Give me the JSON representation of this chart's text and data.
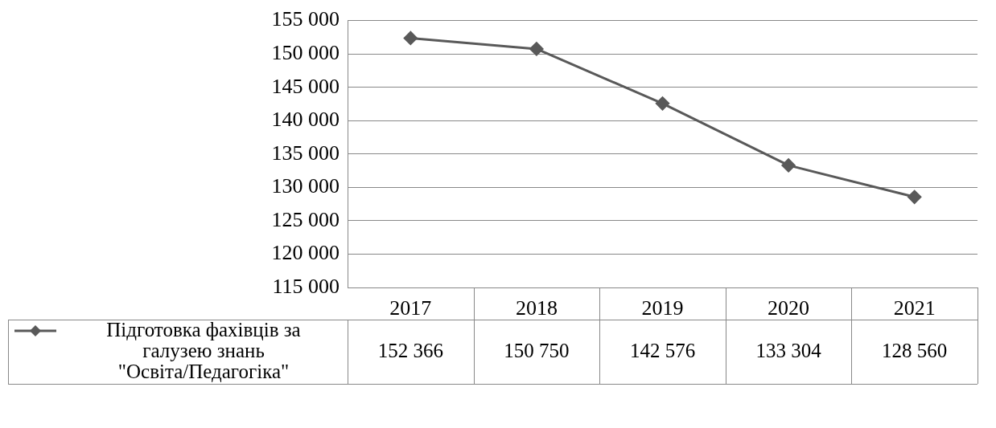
{
  "chart_data": {
    "type": "line",
    "categories": [
      "2017",
      "2018",
      "2019",
      "2020",
      "2021"
    ],
    "series": [
      {
        "name": "Підготовка фахівців за галузею знань \"Освіта/Педагогіка\"",
        "color": "#595959",
        "values": [
          152366,
          150750,
          142576,
          133304,
          128560
        ],
        "value_labels": [
          "152 366",
          "150 750",
          "142 576",
          "133 304",
          "128 560"
        ]
      }
    ],
    "ylim": [
      115000,
      155000
    ],
    "yticks": [
      {
        "value": 115000,
        "label": "115 000"
      },
      {
        "value": 120000,
        "label": "120 000"
      },
      {
        "value": 125000,
        "label": "125 000"
      },
      {
        "value": 130000,
        "label": "130 000"
      },
      {
        "value": 135000,
        "label": "135 000"
      },
      {
        "value": 140000,
        "label": "140 000"
      },
      {
        "value": 145000,
        "label": "145 000"
      },
      {
        "value": 150000,
        "label": "150 000"
      },
      {
        "value": 155000,
        "label": "155 000"
      }
    ],
    "grid": "y",
    "legend": "bottom left",
    "marker": "diamond",
    "line_style": "solid"
  }
}
